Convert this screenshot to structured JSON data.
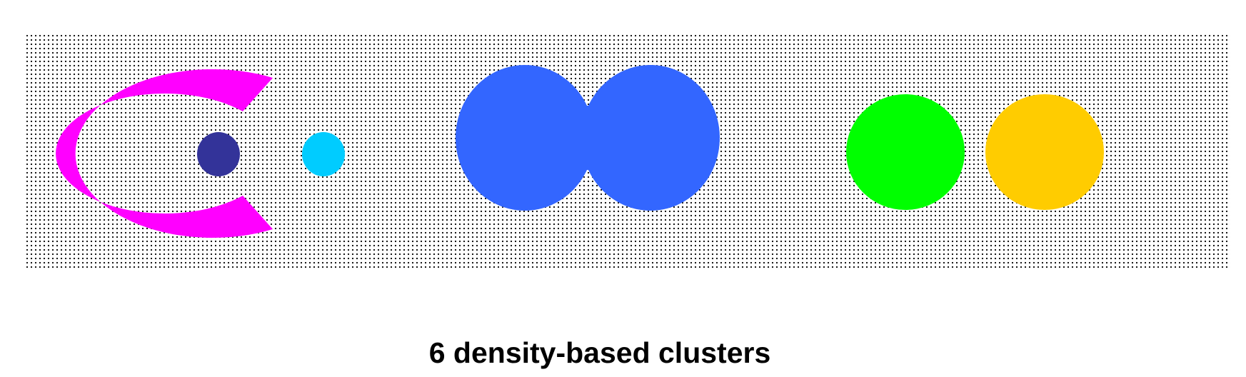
{
  "caption": "6 density-based clusters",
  "background": {
    "dot_color": "#000000",
    "fill": "#ffffff"
  },
  "clusters": [
    {
      "id": "arc",
      "shape": "c-arc",
      "color": "#ff00ff"
    },
    {
      "id": "inner-dot",
      "shape": "circle",
      "color": "#333399"
    },
    {
      "id": "small-dot",
      "shape": "circle",
      "color": "#00ccff"
    },
    {
      "id": "twin-blob",
      "shape": "merged-circles",
      "color": "#3366ff"
    },
    {
      "id": "green-circle",
      "shape": "circle",
      "color": "#00ff00"
    },
    {
      "id": "orange-circle",
      "shape": "circle",
      "color": "#ffcc00"
    }
  ]
}
